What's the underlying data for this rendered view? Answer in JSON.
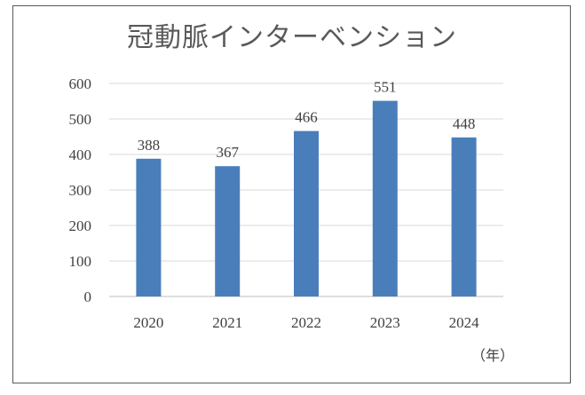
{
  "chart_data": {
    "type": "bar",
    "title": "冠動脈インターベンション",
    "categories": [
      "2020",
      "2021",
      "2022",
      "2023",
      "2024"
    ],
    "values": [
      388,
      367,
      466,
      551,
      448
    ],
    "data_labels": [
      "388",
      "367",
      "466",
      "551",
      "448"
    ],
    "xlabel": "（年）",
    "ylabel": "",
    "ylim": [
      0,
      600
    ],
    "yticks": [
      0,
      100,
      200,
      300,
      400,
      500,
      600
    ],
    "grid": true,
    "legend": "none",
    "colors": {
      "bar": "#4a7ebb",
      "grid": "#d9d9d9",
      "text": "#404040",
      "title": "#595959"
    }
  }
}
